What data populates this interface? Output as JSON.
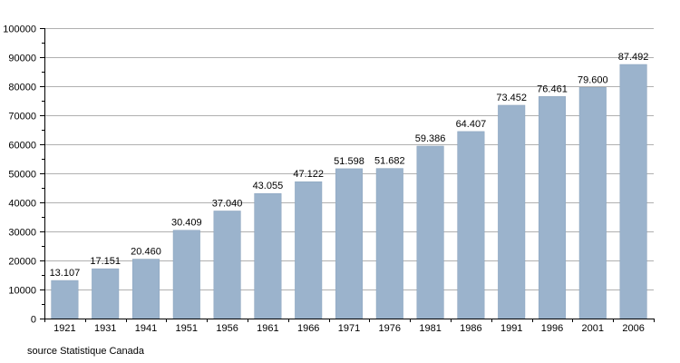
{
  "chart_data": {
    "type": "bar",
    "title": "",
    "xlabel": "",
    "ylabel": "",
    "categories": [
      "1921",
      "1931",
      "1941",
      "1951",
      "1956",
      "1961",
      "1966",
      "1971",
      "1976",
      "1981",
      "1986",
      "1991",
      "1996",
      "2001",
      "2006"
    ],
    "values": [
      13107,
      17151,
      20460,
      30409,
      37040,
      43055,
      47122,
      51598,
      51682,
      59386,
      64407,
      73452,
      76461,
      79600,
      87492
    ],
    "data_labels": [
      "13.107",
      "17.151",
      "20.460",
      "30.409",
      "37.040",
      "43.055",
      "47.122",
      "51.598",
      "51.682",
      "59.386",
      "64.407",
      "73.452",
      "76.461",
      "79.600",
      "87.492"
    ],
    "ylim": [
      0,
      100000
    ],
    "yticks": [
      "0",
      "10000",
      "20000",
      "30000",
      "40000",
      "50000",
      "60000",
      "70000",
      "80000",
      "90000",
      "100000"
    ],
    "grid": true,
    "legend": "none",
    "colors": {
      "bar": "#9bb3cc",
      "bar_edge": "#8aa3bd",
      "grid": "#b0b0b0",
      "axis": "#000000"
    }
  },
  "footer": {
    "source": "source Statistique Canada"
  }
}
